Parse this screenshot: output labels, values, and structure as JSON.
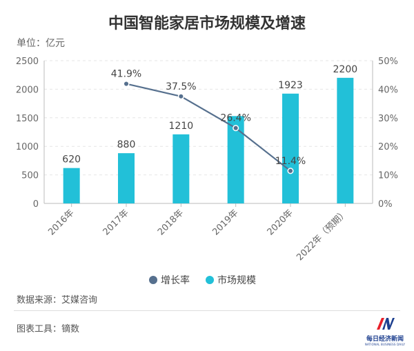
{
  "title": "中国智能家居市场规模及增速",
  "unit": "单位：亿元",
  "source": "数据来源：艾媒咨询",
  "tool": "图表工具：镝数",
  "logo": {
    "name": "每日经济新闻",
    "sub": "NATIONAL BUSINESS DAILY",
    "colors": [
      "#e8202a",
      "#1d3f8f"
    ]
  },
  "chart_data": {
    "type": "bar",
    "categories": [
      "2016年",
      "2017年",
      "2018年",
      "2019年",
      "2020年",
      "2022年（预期）"
    ],
    "series": [
      {
        "name": "市场规模",
        "type": "bar",
        "axis": "left",
        "color": "#22c0d8",
        "values": [
          620,
          880,
          1210,
          1530,
          1923,
          2200
        ],
        "labels": [
          "620",
          "880",
          "1210",
          "",
          "1923",
          "2200"
        ]
      },
      {
        "name": "增长率",
        "type": "line",
        "axis": "right",
        "color": "#56708e",
        "values": [
          null,
          41.9,
          37.5,
          26.4,
          11.4,
          null
        ],
        "labels": [
          "",
          "41.9%",
          "37.5%",
          "26.4%",
          "11.4%",
          ""
        ]
      }
    ],
    "y_left": {
      "min": 0,
      "max": 2500,
      "ticks": [
        "0",
        "500",
        "1000",
        "1500",
        "2000",
        "2500"
      ]
    },
    "y_right": {
      "min": 0,
      "max": 50,
      "ticks": [
        "0%",
        "10%",
        "20%",
        "30%",
        "40%",
        "50%"
      ]
    },
    "legend": [
      {
        "label": "增长率",
        "color": "#56708e"
      },
      {
        "label": "市场规模",
        "color": "#22c0d8"
      }
    ],
    "legend_position": "bottom",
    "grid": true
  }
}
